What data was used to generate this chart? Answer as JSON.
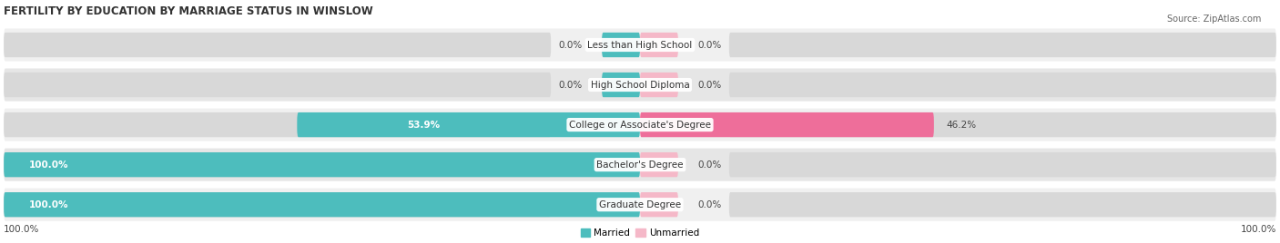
{
  "title": "FERTILITY BY EDUCATION BY MARRIAGE STATUS IN WINSLOW",
  "source": "Source: ZipAtlas.com",
  "categories": [
    "Less than High School",
    "High School Diploma",
    "College or Associate's Degree",
    "Bachelor's Degree",
    "Graduate Degree"
  ],
  "married": [
    0.0,
    0.0,
    53.9,
    100.0,
    100.0
  ],
  "unmarried": [
    0.0,
    0.0,
    46.2,
    0.0,
    0.0
  ],
  "married_color": "#4DBDBD",
  "unmarried_color_weak": "#F5B8C8",
  "unmarried_color_strong": "#EE6E9A",
  "unmarried_threshold": 20,
  "bar_bg_color_left": "#D8D8D8",
  "bar_bg_color_right": "#D8D8D8",
  "row_bg_even": "#F0F0F0",
  "row_bg_odd": "#E6E6E6",
  "stub_size": 6.0,
  "figsize": [
    14.06,
    2.68
  ],
  "dpi": 100,
  "title_fontsize": 8.5,
  "label_fontsize": 7.5,
  "pct_fontsize": 7.5,
  "source_fontsize": 7,
  "legend_fontsize": 7.5
}
